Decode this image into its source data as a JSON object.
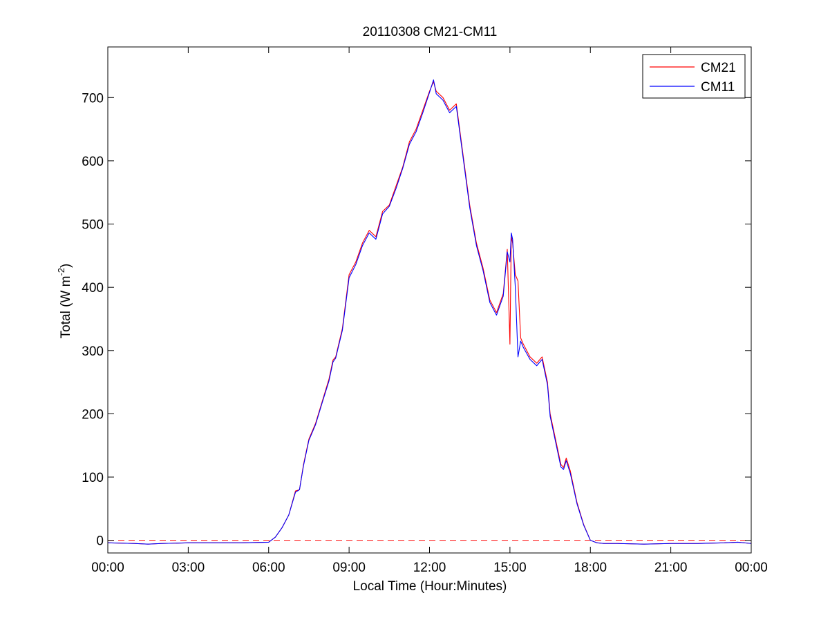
{
  "chart_data": {
    "type": "line",
    "title": "20110308 CM21-CM11",
    "xlabel": "Local Time (Hour:Minutes)",
    "ylabel": "Total (W m⁻²)",
    "ylabel_parts": {
      "pre": "Total (W m",
      "sup": "-2",
      "post": ")"
    },
    "xlim": [
      0,
      24
    ],
    "ylim": [
      -20,
      780
    ],
    "x_ticks": [
      0,
      3,
      6,
      9,
      12,
      15,
      18,
      21,
      24
    ],
    "x_tick_labels": [
      "00:00",
      "03:00",
      "06:00",
      "09:00",
      "12:00",
      "15:00",
      "18:00",
      "21:00",
      "00:00"
    ],
    "y_ticks": [
      0,
      100,
      200,
      300,
      400,
      500,
      600,
      700
    ],
    "y_tick_labels": [
      "0",
      "100",
      "200",
      "300",
      "400",
      "500",
      "600",
      "700"
    ],
    "grid": false,
    "legend_position": "top-right",
    "reference_line": {
      "y": 0,
      "style": "dashed",
      "color": "#ff0000"
    },
    "series": [
      {
        "name": "CM21",
        "color": "#ff0000",
        "x": [
          0,
          1,
          1.5,
          2,
          3,
          4,
          5,
          6,
          6.25,
          6.5,
          6.75,
          7,
          7.15,
          7.3,
          7.5,
          7.75,
          8,
          8.25,
          8.4,
          8.5,
          8.75,
          9,
          9.25,
          9.5,
          9.75,
          10,
          10.25,
          10.5,
          10.75,
          11,
          11.25,
          11.5,
          11.75,
          12,
          12.15,
          12.25,
          12.5,
          12.75,
          13,
          13.25,
          13.5,
          13.75,
          14,
          14.25,
          14.5,
          14.75,
          14.9,
          15,
          15.05,
          15.1,
          15.2,
          15.3,
          15.4,
          15.5,
          15.75,
          16,
          16.2,
          16.4,
          16.5,
          16.75,
          16.9,
          17,
          17.1,
          17.25,
          17.5,
          17.75,
          18,
          18.25,
          18.5,
          19,
          20,
          21,
          22,
          23,
          23.5,
          24
        ],
        "values": [
          -4,
          -5,
          -6,
          -5,
          -4,
          -4,
          -4,
          -3,
          5,
          20,
          40,
          78,
          80,
          120,
          160,
          185,
          220,
          255,
          285,
          290,
          335,
          420,
          440,
          470,
          490,
          480,
          520,
          530,
          560,
          590,
          630,
          650,
          680,
          710,
          725,
          710,
          700,
          680,
          690,
          610,
          530,
          470,
          430,
          380,
          360,
          390,
          460,
          310,
          480,
          470,
          420,
          410,
          320,
          310,
          290,
          280,
          290,
          250,
          200,
          150,
          120,
          115,
          130,
          110,
          60,
          25,
          0,
          -4,
          -5,
          -5,
          -6,
          -5,
          -5,
          -4,
          -3,
          -5
        ]
      },
      {
        "name": "CM11",
        "color": "#0000ff",
        "x": [
          0,
          1,
          1.5,
          2,
          3,
          4,
          5,
          6,
          6.25,
          6.5,
          6.75,
          7,
          7.15,
          7.3,
          7.5,
          7.75,
          8,
          8.25,
          8.4,
          8.5,
          8.75,
          9,
          9.25,
          9.5,
          9.75,
          10,
          10.25,
          10.5,
          10.75,
          11,
          11.25,
          11.5,
          11.75,
          12,
          12.15,
          12.25,
          12.5,
          12.75,
          13,
          13.25,
          13.5,
          13.75,
          14,
          14.25,
          14.5,
          14.75,
          14.9,
          15,
          15.05,
          15.1,
          15.2,
          15.3,
          15.4,
          15.5,
          15.75,
          16,
          16.2,
          16.4,
          16.5,
          16.75,
          16.9,
          17,
          17.1,
          17.25,
          17.5,
          17.75,
          18,
          18.25,
          18.5,
          19,
          20,
          21,
          22,
          23,
          23.5,
          24
        ],
        "values": [
          -4,
          -5,
          -6,
          -5,
          -4,
          -4,
          -4,
          -3,
          5,
          20,
          40,
          76,
          80,
          118,
          158,
          183,
          218,
          252,
          282,
          288,
          332,
          415,
          436,
          466,
          486,
          476,
          516,
          528,
          556,
          588,
          626,
          646,
          676,
          708,
          728,
          706,
          696,
          676,
          686,
          606,
          526,
          466,
          426,
          376,
          356,
          386,
          456,
          440,
          486,
          476,
          400,
          290,
          315,
          305,
          286,
          276,
          286,
          246,
          196,
          146,
          116,
          112,
          126,
          106,
          58,
          24,
          0,
          -4,
          -5,
          -5,
          -6,
          -5,
          -5,
          -4,
          -3,
          -5
        ]
      }
    ]
  }
}
